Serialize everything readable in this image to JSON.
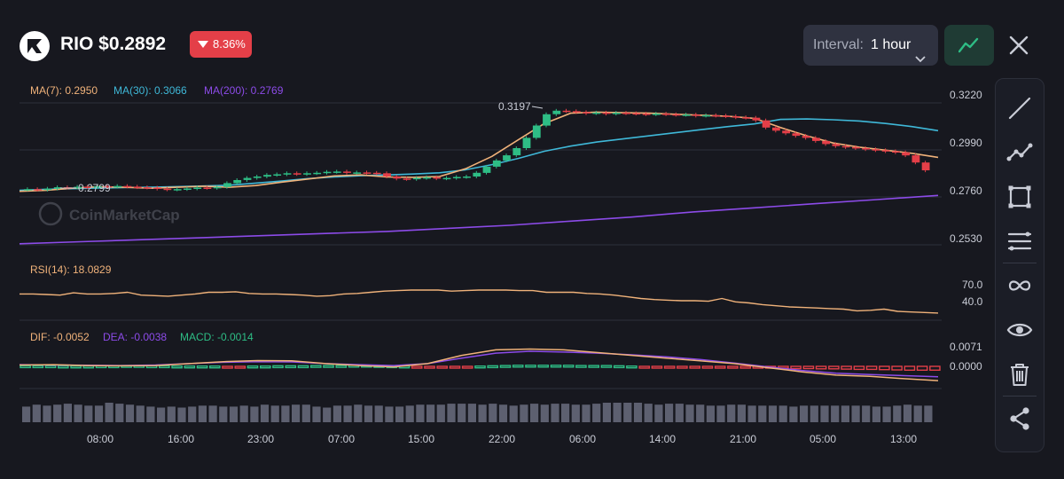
{
  "header": {
    "logo_icon": "rio-logo-icon",
    "title": "RIO $0.2892",
    "change": "8.36%",
    "change_direction": "down",
    "change_color": "#e43f48"
  },
  "controls": {
    "interval_label": "Interval:",
    "interval_value": "1 hour",
    "interval_icon": "chevron-down-icon",
    "chart_type_icon": "line-chart-icon",
    "close_icon": "close-icon"
  },
  "toolbar": {
    "items": [
      {
        "name": "trend-line-icon"
      },
      {
        "name": "polyline-icon"
      },
      {
        "name": "rectangle-icon"
      },
      {
        "name": "fib-lines-icon"
      },
      {
        "name": "infinity-icon"
      },
      {
        "name": "eye-icon"
      },
      {
        "name": "trash-icon"
      },
      {
        "name": "share-icon"
      }
    ]
  },
  "indicators": {
    "ma7": "MA(7): 0.2950",
    "ma30": "MA(30): 0.3066",
    "ma200": "MA(200): 0.2769",
    "rsi": "RSI(14): 18.0829",
    "dif": "DIF: -0.0052",
    "dea": "DEA: -0.0038",
    "macd": "MACD: -0.0014"
  },
  "colors": {
    "up": "#2ebd85",
    "down": "#e43f48",
    "ma7": "#f0b27a",
    "ma30": "#3fb8d8",
    "ma200": "#8c4be8",
    "rsi": "#f0b27a",
    "dea": "#8c4be8",
    "macd_label": "#2ebd85",
    "volume": "#5d6070"
  },
  "watermark": "CoinMarketCap",
  "chart_data": {
    "type": "candlestick",
    "price_axis": [
      "0.3220",
      "0.2990",
      "0.2760",
      "0.2530"
    ],
    "rsi_axis": [
      "70.0",
      "40.0"
    ],
    "macd_axis": [
      "0.0071",
      "0.0000"
    ],
    "x_labels": [
      "08:00",
      "16:00",
      "23:00",
      "07:00",
      "15:00",
      "22:00",
      "06:00",
      "14:00",
      "21:00",
      "05:00",
      "13:00"
    ],
    "high_label": "0.3197",
    "low_label": "0.2799",
    "ylim": [
      0.253,
      0.322
    ],
    "candles": [
      [
        0.28,
        0.2801
      ],
      [
        0.2801,
        0.2798
      ],
      [
        0.2798,
        0.2803
      ],
      [
        0.2803,
        0.281
      ],
      [
        0.281,
        0.2808
      ],
      [
        0.2808,
        0.2812
      ],
      [
        0.2812,
        0.281
      ],
      [
        0.281,
        0.2815
      ],
      [
        0.2815,
        0.2812
      ],
      [
        0.2812,
        0.2816
      ],
      [
        0.2816,
        0.2813
      ],
      [
        0.2813,
        0.281
      ],
      [
        0.281,
        0.2808
      ],
      [
        0.2808,
        0.2803
      ],
      [
        0.2803,
        0.2799
      ],
      [
        0.2799,
        0.2801
      ],
      [
        0.2801,
        0.2804
      ],
      [
        0.2804,
        0.2808
      ],
      [
        0.2808,
        0.2807
      ],
      [
        0.2807,
        0.2811
      ],
      [
        0.2811,
        0.283
      ],
      [
        0.283,
        0.2845
      ],
      [
        0.2845,
        0.2855
      ],
      [
        0.2855,
        0.2862
      ],
      [
        0.2862,
        0.287
      ],
      [
        0.287,
        0.2873
      ],
      [
        0.2873,
        0.2878
      ],
      [
        0.2878,
        0.2874
      ],
      [
        0.2874,
        0.2878
      ],
      [
        0.2878,
        0.288
      ],
      [
        0.288,
        0.2885
      ],
      [
        0.2885,
        0.2886
      ],
      [
        0.2886,
        0.288
      ],
      [
        0.288,
        0.2882
      ],
      [
        0.2882,
        0.288
      ],
      [
        0.288,
        0.2878
      ],
      [
        0.2878,
        0.2862
      ],
      [
        0.2862,
        0.2852
      ],
      [
        0.2852,
        0.285
      ],
      [
        0.285,
        0.2855
      ],
      [
        0.2855,
        0.2858
      ],
      [
        0.2858,
        0.2853
      ],
      [
        0.2853,
        0.2855
      ],
      [
        0.2855,
        0.286
      ],
      [
        0.286,
        0.2862
      ],
      [
        0.2862,
        0.288
      ],
      [
        0.288,
        0.291
      ],
      [
        0.291,
        0.294
      ],
      [
        0.294,
        0.2965
      ],
      [
        0.2965,
        0.3
      ],
      [
        0.3,
        0.305
      ],
      [
        0.305,
        0.311
      ],
      [
        0.311,
        0.3165
      ],
      [
        0.3165,
        0.3182
      ],
      [
        0.3182,
        0.318
      ],
      [
        0.318,
        0.3175
      ],
      [
        0.3175,
        0.317
      ],
      [
        0.317,
        0.3173
      ],
      [
        0.3173,
        0.3168
      ],
      [
        0.3168,
        0.3172
      ],
      [
        0.3172,
        0.317
      ],
      [
        0.317,
        0.3168
      ],
      [
        0.3168,
        0.3165
      ],
      [
        0.3165,
        0.3168
      ],
      [
        0.3168,
        0.3165
      ],
      [
        0.3165,
        0.3162
      ],
      [
        0.3162,
        0.3163
      ],
      [
        0.3163,
        0.3158
      ],
      [
        0.3158,
        0.316
      ],
      [
        0.316,
        0.3158
      ],
      [
        0.3158,
        0.3155
      ],
      [
        0.3155,
        0.315
      ],
      [
        0.315,
        0.3148
      ],
      [
        0.3148,
        0.3135
      ],
      [
        0.3135,
        0.31
      ],
      [
        0.31,
        0.3085
      ],
      [
        0.3085,
        0.3072
      ],
      [
        0.3072,
        0.306
      ],
      [
        0.306,
        0.305
      ],
      [
        0.305,
        0.3035
      ],
      [
        0.3035,
        0.302
      ],
      [
        0.302,
        0.301
      ],
      [
        0.301,
        0.3005
      ],
      [
        0.3005,
        0.3
      ],
      [
        0.3,
        0.2995
      ],
      [
        0.2995,
        0.299
      ],
      [
        0.299,
        0.2985
      ],
      [
        0.2985,
        0.298
      ],
      [
        0.298,
        0.2965
      ],
      [
        0.2965,
        0.293
      ],
      [
        0.293,
        0.2892
      ]
    ],
    "ma7": [
      0.279,
      0.2795,
      0.2805,
      0.2812,
      0.281,
      0.2805,
      0.281,
      0.2815,
      0.281,
      0.2818,
      0.2835,
      0.285,
      0.2865,
      0.287,
      0.286,
      0.2858,
      0.2862,
      0.29,
      0.296,
      0.304,
      0.312,
      0.317,
      0.3175,
      0.3172,
      0.317,
      0.3165,
      0.316,
      0.3155,
      0.3145,
      0.31,
      0.306,
      0.3025,
      0.3005,
      0.299,
      0.2975,
      0.2955
    ],
    "ma30": [
      0.2795,
      0.28,
      0.2803,
      0.2806,
      0.2808,
      0.281,
      0.2813,
      0.2816,
      0.282,
      0.283,
      0.284,
      0.2852,
      0.286,
      0.2866,
      0.287,
      0.2874,
      0.288,
      0.2895,
      0.292,
      0.295,
      0.2985,
      0.301,
      0.303,
      0.3045,
      0.306,
      0.3075,
      0.309,
      0.3105,
      0.3118,
      0.314,
      0.3142,
      0.3138,
      0.3132,
      0.312,
      0.3105,
      0.3085
    ],
    "ma200": [
      0.2535,
      0.2545,
      0.2555,
      0.2565,
      0.2575,
      0.2585,
      0.2595,
      0.261,
      0.2625,
      0.2645,
      0.2665,
      0.269,
      0.271,
      0.273,
      0.275,
      0.277
    ],
    "rsi": [
      52,
      52,
      51,
      50,
      54,
      52,
      52,
      53,
      55,
      50,
      49,
      48,
      50,
      52,
      55,
      55,
      56,
      53,
      52,
      52,
      51,
      50,
      48,
      49,
      52,
      53,
      55,
      57,
      58,
      59,
      59,
      59,
      57,
      58,
      59,
      59,
      59,
      58,
      58,
      55,
      55,
      55,
      53,
      52,
      50,
      47,
      44,
      42,
      41,
      40,
      40,
      39,
      44,
      38,
      36,
      33,
      31,
      29,
      28,
      27,
      26,
      25,
      22,
      23,
      25,
      21,
      20,
      19,
      18
    ],
    "dif": [
      0.0005,
      0.0006,
      0.0003,
      0.0002,
      0.0003,
      0.001,
      0.0017,
      0.0021,
      0.002,
      0.001,
      0.0003,
      -0.0002,
      0.001,
      0.004,
      0.006,
      0.0063,
      0.006,
      0.005,
      0.004,
      0.003,
      0.002,
      0.001,
      -0.0005,
      -0.002,
      -0.0032,
      -0.0036,
      -0.0045,
      -0.0052
    ],
    "dea": [
      0.0006,
      0.0005,
      0.0004,
      0.0003,
      0.0005,
      0.001,
      0.0015,
      0.0017,
      0.0016,
      0.001,
      0.0006,
      0.0003,
      0.001,
      0.003,
      0.0048,
      0.0055,
      0.0052,
      0.0048,
      0.0042,
      0.0035,
      0.0025,
      0.0012,
      -0.0002,
      -0.0015,
      -0.0025,
      -0.003,
      -0.0034,
      -0.0038
    ],
    "macd_hist": [
      0.0002,
      0.0002,
      0.0002,
      0.0001,
      0.0001,
      0.0001,
      0.0002,
      0.0002,
      0.0003,
      0.0003,
      0.0002,
      0.0002,
      0.0001,
      0.0001,
      0.0001,
      0.0001,
      -0.0001,
      -0.0001,
      0.0001,
      0.0001,
      0.0002,
      0.0002,
      0.0002,
      0.0003,
      0.0003,
      0.0003,
      0.0004,
      0.0004,
      0.0003,
      0.0002,
      0.0001,
      -0.0001,
      -0.0002,
      -0.0002,
      -0.0002,
      -0.0003,
      0.0001,
      0.0002,
      0.0003,
      0.0004,
      0.0004,
      0.0004,
      0.0004,
      0.0004,
      0.0003,
      0.0003,
      0.0003,
      0.0002,
      0.0001,
      -0.0001,
      -0.0001,
      -0.0002,
      -0.0002,
      -0.0002,
      -0.0003,
      -0.0003,
      -0.0003,
      -0.0003,
      -0.0004,
      -0.0005,
      -0.0006,
      -0.0008,
      -0.0008,
      -0.0009,
      -0.0009,
      -0.001,
      -0.0011,
      -0.0011,
      -0.0012,
      -0.0013,
      -0.0014,
      -0.0014,
      -0.0014
    ],
    "volume": [
      0.8,
      0.9,
      0.85,
      0.9,
      0.95,
      0.9,
      0.85,
      0.85,
      1.0,
      0.95,
      0.9,
      0.85,
      0.8,
      0.75,
      0.8,
      0.75,
      0.8,
      0.85,
      0.85,
      0.8,
      0.8,
      0.85,
      0.8,
      0.9,
      0.85,
      0.85,
      0.9,
      0.9,
      0.8,
      0.75,
      0.85,
      0.85,
      0.9,
      0.85,
      0.85,
      0.8,
      0.8,
      0.85,
      0.9,
      0.9,
      0.9,
      0.95,
      0.95,
      0.95,
      0.9,
      0.95,
      0.9,
      0.85,
      0.9,
      0.95,
      0.9,
      0.95,
      0.95,
      0.9,
      0.9,
      0.95,
      1.0,
      1.0,
      1.0,
      1.0,
      0.95,
      0.9,
      0.95,
      0.95,
      0.9,
      0.9,
      0.85,
      0.85,
      0.9,
      0.9,
      0.85,
      0.85,
      0.85,
      0.85,
      0.8,
      0.85,
      0.85,
      0.85,
      0.85,
      0.85,
      0.85,
      0.85,
      0.8,
      0.8,
      0.85,
      0.9,
      0.85,
      0.85
    ]
  }
}
